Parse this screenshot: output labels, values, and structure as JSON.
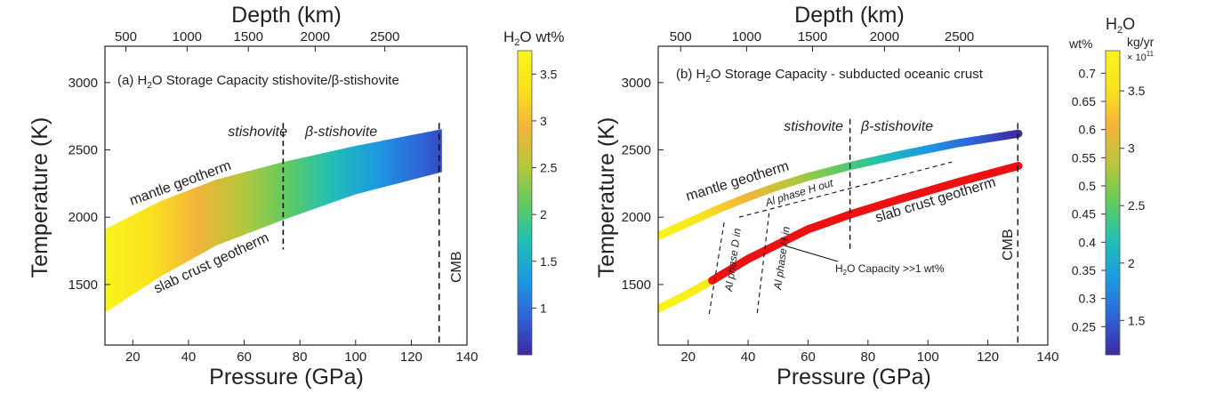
{
  "chart_data": [
    {
      "type": "area",
      "panel_label": "(a) H",
      "panel_sub": "2",
      "panel_rest": "O Storage Capacity stishovite/β-stishovite",
      "xlabel": "Pressure (GPa)",
      "ylabel": "Temperature (K)",
      "top_label": "Depth (km)",
      "xlim": [
        10,
        140
      ],
      "ylim": [
        1050,
        3270
      ],
      "x_ticks": [
        20,
        40,
        60,
        80,
        100,
        120,
        140
      ],
      "y_ticks": [
        1500,
        2000,
        2500,
        3000
      ],
      "depth_ticks": [
        {
          "depth": "500",
          "pressure": 17.5
        },
        {
          "depth": "1000",
          "pressure": 39.5
        },
        {
          "depth": "1500",
          "pressure": 61.5
        },
        {
          "depth": "2000",
          "pressure": 85.5
        },
        {
          "depth": "2500",
          "pressure": 110.5
        }
      ],
      "upper_geotherm": {
        "name": "mantle geotherm",
        "x": [
          10,
          30,
          50,
          74,
          100,
          130
        ],
        "y": [
          1910,
          2120,
          2280,
          2410,
          2530,
          2650
        ]
      },
      "lower_geotherm": {
        "name": "slab crust geotherm",
        "x": [
          10,
          30,
          50,
          74,
          100,
          130
        ],
        "y": [
          1290,
          1560,
          1790,
          1980,
          2170,
          2330
        ]
      },
      "transition": {
        "pressure": 74,
        "label_left": "stishovite",
        "label_right": "β-stishovite",
        "y_range": [
          1760,
          2700
        ]
      },
      "cmb": {
        "pressure": 130,
        "label": "CMB"
      },
      "colorbar": {
        "title_main": "H",
        "title_sub": "2",
        "title_rest": "O wt%",
        "range": [
          0.5,
          3.75
        ],
        "ticks": [
          1,
          1.5,
          2,
          2.5,
          3,
          3.5
        ],
        "colors": [
          "#3c2aa0",
          "#2f64d8",
          "#1c9ae0",
          "#20bfb4",
          "#62cb5f",
          "#b7c73a",
          "#f4b43a",
          "#f9e21e",
          "#faf51a"
        ]
      }
    },
    {
      "type": "line",
      "panel_label": "(b) H",
      "panel_sub": "2",
      "panel_rest": "O Storage Capacity - subducted oceanic crust",
      "xlabel": "Pressure (GPa)",
      "ylabel": "Temperature (K)",
      "top_label": "Depth (km)",
      "xlim": [
        10,
        140
      ],
      "ylim": [
        1050,
        3270
      ],
      "x_ticks": [
        20,
        40,
        60,
        80,
        100,
        120,
        140
      ],
      "y_ticks": [
        1500,
        2000,
        2500,
        3000
      ],
      "depth_ticks": [
        {
          "depth": "500",
          "pressure": 17.5
        },
        {
          "depth": "1000",
          "pressure": 39.5
        },
        {
          "depth": "1500",
          "pressure": 61.5
        },
        {
          "depth": "2000",
          "pressure": 85.5
        },
        {
          "depth": "2500",
          "pressure": 110.5
        }
      ],
      "series": [
        {
          "name": "mantle geotherm",
          "x": [
            10,
            20,
            30,
            40,
            50,
            60,
            74,
            90,
            110,
            130
          ],
          "y": [
            1860,
            1960,
            2060,
            2150,
            2230,
            2300,
            2380,
            2460,
            2550,
            2620
          ]
        },
        {
          "name": "slab crust geotherm",
          "x": [
            10,
            20,
            28,
            40,
            50,
            60,
            74,
            90,
            110,
            130
          ],
          "y": [
            1320,
            1430,
            1530,
            1690,
            1800,
            1910,
            2020,
            2130,
            2260,
            2380
          ]
        }
      ],
      "high_capacity_segment": {
        "x_start": 28,
        "x_end": 130
      },
      "transition": {
        "pressure": 74,
        "label_left": "stishovite",
        "label_right": "β-stishovite",
        "y_range": [
          1760,
          2730
        ]
      },
      "cmb": {
        "pressure": 130,
        "label": "CMB"
      },
      "phase_lines": [
        {
          "label": "Al phase D in",
          "x": [
            32,
            27
          ],
          "y": [
            1960,
            1280
          ]
        },
        {
          "label": "Al phase H in",
          "x": [
            47,
            43
          ],
          "y": [
            2030,
            1280
          ]
        },
        {
          "label": "Al phase H out",
          "x": [
            37,
            108
          ],
          "y": [
            2000,
            2410
          ]
        }
      ],
      "annotation": {
        "label": "H",
        "sub": "2",
        "rest": "O Capacity >>1 wt%",
        "arrow_to": {
          "pressure": 52,
          "temp": 1790
        }
      },
      "colorbar": {
        "title_main": "H",
        "title_sub": "2",
        "title_rest": "O",
        "left_unit": "wt%",
        "left_range": [
          0.2,
          0.74
        ],
        "left_ticks": [
          0.25,
          0.3,
          0.35,
          0.4,
          0.45,
          0.5,
          0.55,
          0.6,
          0.65,
          0.7
        ],
        "right_unit": "kg/yr",
        "right_exp": "× 10",
        "right_exp_sup": "11",
        "right_range": [
          1.2,
          3.85
        ],
        "right_ticks": [
          1.5,
          2,
          2.5,
          3,
          3.5
        ],
        "colors": [
          "#3c2aa0",
          "#2f64d8",
          "#1c9ae0",
          "#20bfb4",
          "#62cb5f",
          "#b7c73a",
          "#f4b43a",
          "#f9e21e",
          "#faf51a"
        ]
      }
    }
  ]
}
